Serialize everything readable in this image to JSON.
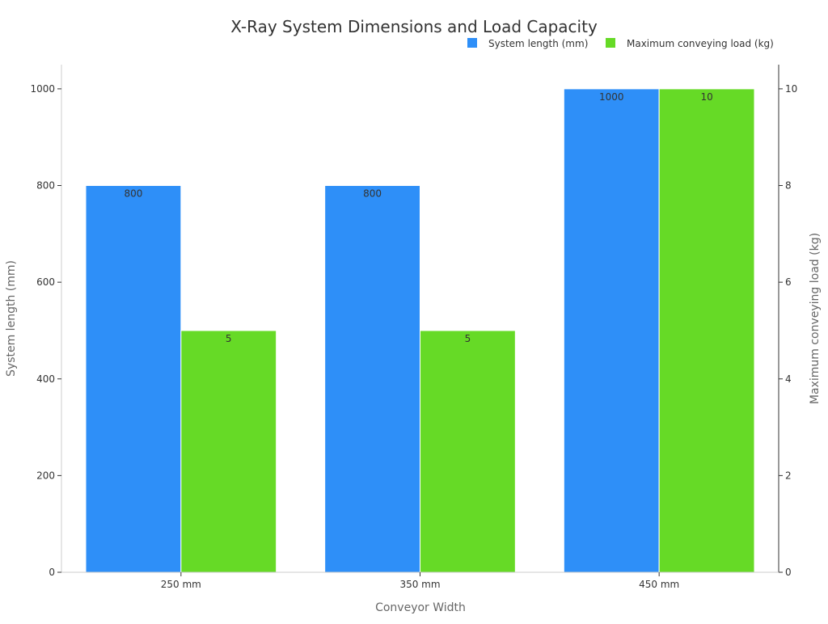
{
  "chart_data": {
    "type": "bar",
    "title": "X-Ray System Dimensions and Load Capacity",
    "xlabel": "Conveyor Width",
    "ylabel_left": "System length (mm)",
    "ylabel_right": "Maximum conveying load (kg)",
    "categories": [
      "250 mm",
      "350 mm",
      "450 mm"
    ],
    "series": [
      {
        "name": "System length (mm)",
        "axis": "left",
        "color": "#2E8FF8",
        "values": [
          800,
          800,
          1000
        ],
        "labels": [
          "800",
          "800",
          "1000"
        ]
      },
      {
        "name": "Maximum conveying load (kg)",
        "axis": "right",
        "color": "#66DA26",
        "values": [
          5,
          5,
          10
        ],
        "labels": [
          "5",
          "5",
          "10"
        ]
      }
    ],
    "ylim_left": [
      0,
      1050
    ],
    "ylim_right": [
      0,
      10.5
    ],
    "yticks_left": [
      "0",
      "200",
      "400",
      "600",
      "800",
      "1000"
    ],
    "yticks_right": [
      "0",
      "2",
      "4",
      "6",
      "8",
      "10"
    ],
    "legend_position": "top-right",
    "grid": false
  }
}
